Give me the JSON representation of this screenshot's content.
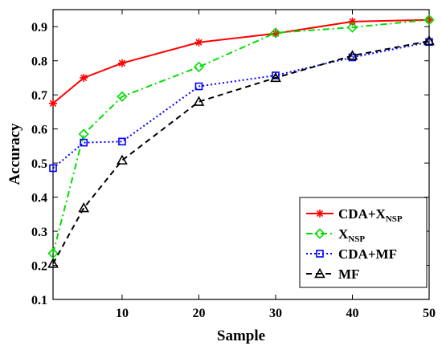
{
  "chart_data": {
    "type": "line",
    "xlabel": "Sample",
    "ylabel": "Accuracy",
    "xlim": [
      1,
      50
    ],
    "ylim": [
      0.1,
      0.95
    ],
    "xticks": [
      10,
      20,
      30,
      40,
      50
    ],
    "yticks": [
      0.1,
      0.2,
      0.3,
      0.4,
      0.5,
      0.6,
      0.7,
      0.8,
      0.9
    ],
    "x": [
      1,
      5,
      10,
      20,
      30,
      40,
      50
    ],
    "legend_position": "bottom-right",
    "grid": false,
    "series": [
      {
        "name": "CDA+X",
        "name_sub": "NSP",
        "color": "#ff0000",
        "dash": "none",
        "marker": "star",
        "values": [
          0.675,
          0.75,
          0.793,
          0.854,
          0.88,
          0.915,
          0.92
        ]
      },
      {
        "name": "X",
        "name_sub": "NSP",
        "color": "#00dd00",
        "dash": "8,4,2,4",
        "marker": "diamond",
        "values": [
          0.235,
          0.585,
          0.695,
          0.782,
          0.882,
          0.898,
          0.92
        ]
      },
      {
        "name": "CDA+MF",
        "color": "#0000ff",
        "dash": "2,3",
        "marker": "square",
        "values": [
          0.485,
          0.56,
          0.563,
          0.725,
          0.757,
          0.81,
          0.855
        ]
      },
      {
        "name": "MF",
        "color": "#000000",
        "dash": "7,5",
        "marker": "triangle",
        "values": [
          0.205,
          0.368,
          0.508,
          0.68,
          0.75,
          0.815,
          0.858
        ]
      }
    ]
  }
}
